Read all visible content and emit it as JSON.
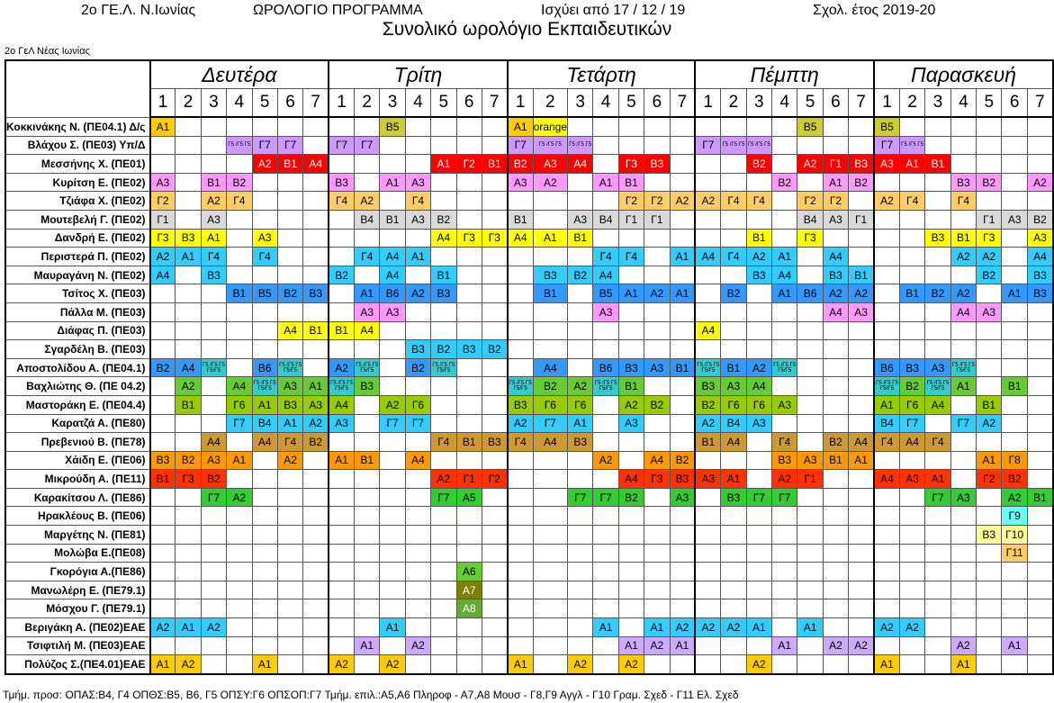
{
  "header": {
    "school_short": "2ο ΓΕ.Λ. Ν.Ιωνίας",
    "doc_type": "ΩΡΟΛΟΓΙΟ ΠΡΟΓΡΑΜΜΑ",
    "valid_from": "Ισχύει από 17 / 12 / 19",
    "school_year": "Σχολ. έτος 2019-20",
    "title": "Συνολικό ωρολόγιο Εκπαιδευτικών",
    "school_name": "2ο ΓεΛ Νέας Ιωνίας"
  },
  "days": [
    "Δευτέρα",
    "Τρίτη",
    "Τετάρτη",
    "Πέμπτη",
    "Παρασκευή"
  ],
  "periods": [
    "1",
    "2",
    "3",
    "4",
    "5",
    "6",
    "7"
  ],
  "colors": {
    "A1": "#ffff00",
    "A2": "#ffff00",
    "A3": "#ffff00",
    "A4": "#ffff00",
    "A5": "#66ff33",
    "A6": "#66ff33",
    "A7": "#808000",
    "A8": "#66cc33",
    "B1": "#ffff00",
    "B2": "#cc99ff",
    "B3": "#ffff00",
    "B4": "#bfbfbf",
    "B5": "#ccaa33",
    "B6": "#3399ff",
    "G1": "#d9d9d9",
    "G2": "#ffcc66",
    "G3": "#ffff00",
    "G4": "#ffcc66",
    "G5": "#cc99ff",
    "G6": "#ffcc00",
    "G7": "#cc99ff",
    "G8": "#ffcc66",
    "G9": "#66ffff",
    "G10": "#ffff99",
    "G11": "#ffcc66",
    "red": "#ff0000",
    "pink": "#ff99ff",
    "gray": "#d9d9d9",
    "yellow": "#ffff00",
    "cyan": "#33ccff",
    "blue": "#3399ff",
    "lav": "#ccaaff",
    "green": "#99cc00",
    "ltgreen": "#33cc33",
    "orange": "#ff6600",
    "brown": "#cc9933",
    "olive": "#999900",
    "white": "#ffffff"
  },
  "teachers": [
    {
      "name": "Κοκκινάκης Ν. (ΠΕ04.1) Δ/ς",
      "cells": [
        [
          "Α1",
          "olive"
        ],
        "",
        "",
        "",
        "",
        "",
        "",
        "",
        "",
        "Β5",
        "",
        "",
        "",
        "",
        "Α1",
        "orange",
        "",
        "",
        "",
        "",
        "",
        "",
        "",
        "",
        "",
        "Β5",
        "",
        "",
        "Β5",
        "",
        "",
        "",
        "",
        "",
        ""
      ]
    },
    {
      "name": "Βλάχου Σ. (ΠΕ03) Υπ/Δ",
      "cells": [
        "",
        "",
        "",
        "Γ5 /Γ5 Γ5",
        "Γ7",
        "Γ7",
        "",
        "Γ7",
        "Γ7",
        "",
        "",
        "",
        "",
        "",
        "Γ7",
        "Γ5 /Γ5 Γ5",
        "Γ5 /Γ5 Γ5",
        "",
        "",
        "",
        "",
        "Γ7",
        "Γ5 /Γ5 Γ5",
        "Γ5 /Γ5 Γ5",
        "",
        "",
        "",
        "",
        "Γ7",
        "Γ5 /Γ5 Γ5",
        "",
        "",
        "",
        "",
        ""
      ]
    },
    {
      "name": "Μεσσήνης Χ. (ΠΕ01)",
      "cells": [
        "",
        "",
        "",
        "",
        "Α2",
        "Β1",
        "Α4",
        "",
        "",
        "",
        "",
        "Α1",
        "Γ2",
        "Β1",
        "Β2",
        "Α3",
        "Α4",
        "",
        "Γ3",
        "Β3",
        "",
        "",
        "",
        "Β2",
        "",
        "Α2",
        "Γ1",
        "Β3",
        "Α3",
        "Α1",
        "Β1",
        "",
        "",
        "",
        ""
      ]
    },
    {
      "name": "Κυρίτση Ε. (ΠΕ02)",
      "cells": [
        "Α3",
        "",
        "Β1",
        "Β2",
        "",
        "",
        "",
        "Β3",
        "",
        "Α1",
        "Α3",
        "",
        "",
        "",
        "Α3",
        "Α2",
        "",
        "Α1",
        "Β1",
        "",
        "",
        "",
        "",
        "",
        "Β2",
        "",
        "Α1",
        "Β2",
        "",
        "",
        "",
        "Β3",
        "Β2",
        "",
        "Α2"
      ]
    },
    {
      "name": "Τζιάφα Χ. (ΠΕ02)",
      "cells": [
        "Γ2",
        "",
        "Α2",
        "Γ4",
        "",
        "",
        "",
        "Γ4",
        "Α2",
        "",
        "Γ4",
        "",
        "",
        "",
        "",
        "",
        "",
        "",
        "Γ2",
        "Γ2",
        "Α2",
        "Α2",
        "Γ4",
        "Γ4",
        "",
        "Γ2",
        "Γ2",
        "",
        "Α2",
        "Γ4",
        "",
        "Γ4",
        "",
        "",
        ""
      ]
    },
    {
      "name": "Μουτεβελή Γ. (ΠΕ02)",
      "cells": [
        "Γ1",
        "",
        "Α3",
        "",
        "",
        "",
        "",
        "",
        "Β4",
        "Β1",
        "Α3",
        "Β2",
        "",
        "",
        "Β1",
        "",
        "Α3",
        "Β4",
        "Γ1",
        "Γ1",
        "",
        "",
        "",
        "",
        "",
        "Β4",
        "Α3",
        "Γ1",
        "",
        "",
        "",
        "",
        "Γ1",
        "Α3",
        "Β2"
      ]
    },
    {
      "name": "Δανδρή Ε. (ΠΕ02)",
      "cells": [
        "Γ3",
        "Β3",
        "Α1",
        "",
        "Α3",
        "",
        "",
        "",
        "",
        "",
        "",
        "Α4",
        "Γ3",
        "Γ3",
        "Α4",
        "Α1",
        "Β1",
        "",
        "",
        "",
        "",
        "",
        "",
        "Β1",
        "",
        "Γ3",
        "",
        "",
        "",
        "",
        "Β3",
        "Β1",
        "Γ3",
        "",
        "Α3"
      ]
    },
    {
      "name": "Περιστερά Π. (ΠΕ02)",
      "cells": [
        "Α2",
        "Α1",
        "Γ4",
        "",
        "Γ4",
        "",
        "",
        "",
        "Γ4",
        "Α4",
        "Α1",
        "",
        "",
        "",
        "",
        "",
        "",
        "Γ4",
        "Γ4",
        "",
        "Α1",
        "Α4",
        "Γ4",
        "Α2",
        "Α1",
        "",
        "Α4",
        "",
        "",
        "",
        "",
        "Α2",
        "Α2",
        "",
        "Α4"
      ]
    },
    {
      "name": "Μαυραγάνη Ν. (ΠΕ02)",
      "cells": [
        "Α4",
        "",
        "Β3",
        "",
        "",
        "",
        "",
        "Β2",
        "",
        "Α4",
        "",
        "Β1",
        "",
        "",
        "",
        "Β3",
        "Β2",
        "Α4",
        "",
        "",
        "",
        "",
        "",
        "Β3",
        "Α4",
        "",
        "Β3",
        "Β1",
        "",
        "",
        "",
        "",
        "Β2",
        "",
        "Β3"
      ]
    },
    {
      "name": "Τσίτος Χ. (ΠΕ03)",
      "cells": [
        "",
        "",
        "",
        "Β1",
        "Β5",
        "Β2",
        "Β3",
        "",
        "Α1",
        "Β6",
        "Α2",
        "Β3",
        "",
        "",
        "",
        "Β1",
        "",
        "Β5",
        "Α1",
        "Α2",
        "Α1",
        "",
        "Β2",
        "",
        "Α1",
        "Β6",
        "Α2",
        "Α2",
        "",
        "Β1",
        "Β2",
        "Α2",
        "",
        "Α1",
        "Β3"
      ]
    },
    {
      "name": "Πάλλα Μ. (ΠΕ03)",
      "cells": [
        "",
        "",
        "",
        "",
        "",
        "",
        "",
        "",
        "Α3",
        "Α3",
        "",
        "",
        "",
        "",
        "",
        "",
        "",
        "Α3",
        "",
        "",
        "",
        "",
        "",
        "",
        "",
        "",
        "Α4",
        "Α3",
        "",
        "",
        "",
        "Α4",
        "Α3",
        "",
        ""
      ]
    },
    {
      "name": "Διάφας Π. (ΠΕ03)",
      "cells": [
        "",
        "",
        "",
        "",
        "",
        "Α4",
        "Β1",
        "Β1",
        "Α4",
        "",
        "",
        "",
        "",
        "",
        "",
        "",
        "",
        "",
        "",
        "",
        "",
        "Α4",
        "",
        "",
        "",
        "",
        "",
        "",
        "",
        "",
        "",
        "",
        "",
        "",
        ""
      ]
    },
    {
      "name": "Σγαρδέλη Β. (ΠΕ03)",
      "cells": [
        "",
        "",
        "",
        "",
        "",
        "",
        "",
        "",
        "",
        "",
        "Β3",
        "Β2",
        "Β3",
        "Β2",
        "",
        "",
        "",
        "",
        "",
        "",
        "",
        "",
        "",
        "",
        "",
        "",
        "",
        "",
        "",
        "",
        "",
        "",
        "",
        "",
        ""
      ]
    },
    {
      "name": "Αποστολίδου Α. (ΠΕ04.1)",
      "cells": [
        "Β2",
        "Α4",
        "Γ5 /Γ5 Γ5 Γ5/Γ5",
        "",
        "Β6",
        "Γ5 /Γ5 Γ5 Γ5/Γ5",
        "",
        "Α2",
        "Γ5 /Γ5 Γ5 Γ5/Γ5",
        "",
        "Β2",
        "Γ5 /Γ5 Γ5 Γ5/Γ5",
        "",
        "",
        "",
        "Α4",
        "",
        "Β6",
        "Β3",
        "Α3",
        "Β1",
        "Γ5 /Γ5 Γ5 Γ5/Γ5",
        "Β1",
        "Α2",
        "Γ5 /Γ5 Γ5 Γ5/Γ5",
        "",
        "",
        "",
        "Β6",
        "Β3",
        "Α3",
        "Γ5 /Γ5 Γ5 Γ5/Γ5",
        "",
        "",
        ""
      ]
    },
    {
      "name": "Βαχλιώτης Θ. (ΠΕ 04.2)",
      "cells": [
        "",
        "Α2",
        "",
        "Α4",
        "Γ5 /Γ5 Γ5 Γ5/Γ5",
        "Α3",
        "Α1",
        "Γ5 /Γ5 Γ5 Γ5/Γ5",
        "Β3",
        "",
        "",
        "",
        "",
        "",
        "Γ5 /Γ5 Γ5 Γ5/Γ5",
        "Β2",
        "Α2",
        "Γ5 /Γ5 Γ5 Γ5/Γ5",
        "Β1",
        "",
        "",
        "Β3",
        "Α3",
        "Α4",
        "",
        "",
        "",
        "",
        "Γ5 /Γ5 Γ5 Γ5/Γ5",
        "Β2",
        "Γ5 /Γ5 Γ5 Γ5/Γ5",
        "Α1",
        "",
        "Β1",
        ""
      ]
    },
    {
      "name": "Μαστοράκη Ε. (ΠΕ04.4)",
      "cells": [
        "",
        "Β1",
        "",
        "Γ6",
        "Α1",
        "Β3",
        "Α3",
        "Α4",
        "",
        "Α2",
        "Γ6",
        "",
        "",
        "",
        "Β3",
        "Γ6",
        "Γ6",
        "",
        "Α2",
        "Β2",
        "",
        "Β2",
        "Γ6",
        "Γ6",
        "Α3",
        "",
        "",
        "",
        "Α1",
        "Γ6",
        "Α4",
        "",
        "Β1",
        "",
        ""
      ]
    },
    {
      "name": "Καρατζά Α. (ΠΕ80)",
      "cells": [
        "",
        "",
        "",
        "Γ7",
        "Β4",
        "Α1",
        "Α2",
        "Α3",
        "",
        "Γ7",
        "Γ7",
        "",
        "",
        "",
        "Α2",
        "Γ7",
        "Α1",
        "",
        "Α3",
        "",
        "",
        "Α2",
        "Β4",
        "Α3",
        "",
        "",
        "",
        "",
        "Β4",
        "Γ7",
        "",
        "Γ7",
        "Α2",
        "",
        ""
      ]
    },
    {
      "name": "Πρεβενιού Β. (ΠΕ78)",
      "cells": [
        "",
        "",
        "Α4",
        "",
        "Α4",
        "Γ4",
        "Β2",
        "",
        "",
        "",
        "",
        "Γ4",
        "Β1",
        "Β3",
        "Γ4",
        "Α4",
        "Β3",
        "",
        "",
        "",
        "",
        "Β1",
        "Α4",
        "",
        "Γ4",
        "",
        "Β2",
        "Α4",
        "Γ4",
        "Α4",
        "Γ4",
        "",
        "",
        "",
        ""
      ]
    },
    {
      "name": "Χάιδη Ε. (ΠΕ06)",
      "cells": [
        "Β3",
        "Β2",
        "Α3",
        "Α1",
        "",
        "Α2",
        "",
        "Α1",
        "Β1",
        "",
        "Α4",
        "",
        "",
        "",
        "",
        "",
        "",
        "Α2",
        "",
        "Α4",
        "Β2",
        "",
        "",
        "",
        "Β3",
        "Α3",
        "Β1",
        "Α1",
        "",
        "",
        "",
        "",
        "Α1",
        "Γ8",
        ""
      ]
    },
    {
      "name": "Μικρούδη Α. (ΠΕ11)",
      "cells": [
        "Β1",
        "Γ3",
        "Β2",
        "",
        "",
        "",
        "",
        "",
        "",
        "",
        "",
        "Α2",
        "Γ1",
        "Γ2",
        "",
        "",
        "",
        "",
        "Α4",
        "Γ3",
        "Β3",
        "Α3",
        "Α1",
        "",
        "Α2",
        "Γ1",
        "",
        "",
        "Α4",
        "Α3",
        "Α1",
        "",
        "Γ2",
        "Β2",
        ""
      ]
    },
    {
      "name": "Καρακίτσου Λ. (ΠΕ86)",
      "cells": [
        "",
        "",
        "Γ7",
        "Α2",
        "",
        "",
        "",
        "",
        "",
        "",
        "",
        "Γ7",
        "Α5",
        "",
        "",
        "",
        "Γ7",
        "Γ7",
        "Β2",
        "",
        "Α3",
        "",
        "Β3",
        "Γ7",
        "Γ7",
        "",
        "",
        "",
        "",
        "",
        "Γ7",
        "Α3",
        "",
        "Α2",
        "Β1"
      ]
    },
    {
      "name": "Ηρακλέους Β. (ΠΕ06)",
      "cells": [
        "",
        "",
        "",
        "",
        "",
        "",
        "",
        "",
        "",
        "",
        "",
        "",
        "",
        "",
        "",
        "",
        "",
        "",
        "",
        "",
        "",
        "",
        "",
        "",
        "",
        "",
        "",
        "",
        "",
        "",
        "",
        "",
        "",
        "Γ9",
        ""
      ]
    },
    {
      "name": "Μαργέτης Ν. (ΠΕ81)",
      "cells": [
        "",
        "",
        "",
        "",
        "",
        "",
        "",
        "",
        "",
        "",
        "",
        "",
        "",
        "",
        "",
        "",
        "",
        "",
        "",
        "",
        "",
        "",
        "",
        "",
        "",
        "",
        "",
        "",
        "",
        "",
        "",
        "",
        "Β3",
        "Γ10",
        ""
      ]
    },
    {
      "name": "Μολώβα Ε.(ΠΕ08)",
      "cells": [
        "",
        "",
        "",
        "",
        "",
        "",
        "",
        "",
        "",
        "",
        "",
        "",
        "",
        "",
        "",
        "",
        "",
        "",
        "",
        "",
        "",
        "",
        "",
        "",
        "",
        "",
        "",
        "",
        "",
        "",
        "",
        "",
        "",
        "Γ11",
        ""
      ]
    },
    {
      "name": "Γκορόγια Α.(ΠΕ86)",
      "cells": [
        "",
        "",
        "",
        "",
        "",
        "",
        "",
        "",
        "",
        "",
        "",
        "",
        "Α6",
        "",
        "",
        "",
        "",
        "",
        "",
        "",
        "",
        "",
        "",
        "",
        "",
        "",
        "",
        "",
        "",
        "",
        "",
        "",
        "",
        "",
        ""
      ]
    },
    {
      "name": "Μανωλέρη Ε. (ΠΕ79.1)",
      "cells": [
        "",
        "",
        "",
        "",
        "",
        "",
        "",
        "",
        "",
        "",
        "",
        "",
        "Α7",
        "",
        "",
        "",
        "",
        "",
        "",
        "",
        "",
        "",
        "",
        "",
        "",
        "",
        "",
        "",
        "",
        "",
        "",
        "",
        "",
        "",
        ""
      ]
    },
    {
      "name": "Μόσχου Γ. (ΠΕ79.1)",
      "cells": [
        "",
        "",
        "",
        "",
        "",
        "",
        "",
        "",
        "",
        "",
        "",
        "",
        "Α8",
        "",
        "",
        "",
        "",
        "",
        "",
        "",
        "",
        "",
        "",
        "",
        "",
        "",
        "",
        "",
        "",
        "",
        "",
        "",
        "",
        "",
        ""
      ]
    },
    {
      "name": "Βεριγάκη Α. (ΠΕ02)ΕΑΕ",
      "cells": [
        "Α2",
        "Α1",
        "Α2",
        "",
        "",
        "",
        "",
        "",
        "",
        "Α1",
        "",
        "",
        "",
        "",
        "",
        "",
        "",
        "Α1",
        "",
        "Α1",
        "Α2",
        "Α2",
        "Α2",
        "Α1",
        "",
        "Α1",
        "",
        "",
        "Α2",
        "Α2",
        "",
        "",
        "",
        "",
        ""
      ]
    },
    {
      "name": "Τσιφτιλή Μ. (ΠΕ03)ΕΑΕ",
      "cells": [
        "",
        "",
        "",
        "",
        "",
        "",
        "",
        "",
        "Α1",
        "",
        "Α2",
        "",
        "",
        "",
        "",
        "",
        "",
        "",
        "Α1",
        "Α2",
        "Α1",
        "",
        "",
        "",
        "Α1",
        "",
        "Α2",
        "Α2",
        "",
        "",
        "",
        "Α2",
        "",
        "Α1",
        ""
      ]
    },
    {
      "name": "Πολύζος Σ.(ΠΕ4.01)ΕΑΕ",
      "cells": [
        "Α1",
        "Α2",
        "",
        "",
        "Α1",
        "",
        "",
        "Α2",
        "",
        "Α2",
        "",
        "",
        "",
        "",
        "Α1",
        "",
        "Α2",
        "",
        "Α2",
        "",
        "",
        "",
        "",
        "Α2",
        "",
        "",
        "",
        "",
        "Α1",
        "",
        "",
        "Α1",
        "",
        "",
        ""
      ]
    }
  ],
  "footer": "Τμήμ. προσ: ΟΠΑΣ:Β4, Γ4  ΟΠΘΣ:Β5, Β6, Γ5   ΟΠΣΥ:Γ6   ΟΠΣΟΠ:Γ7  Τμήμ. επιλ.:Α5,Α6 Πληροφ - Α7,Α8 Μουσ - Γ8,Γ9 Αγγλ - Γ10 Γραμ. Σχεδ - Γ11 Ελ. Σχεδ"
}
